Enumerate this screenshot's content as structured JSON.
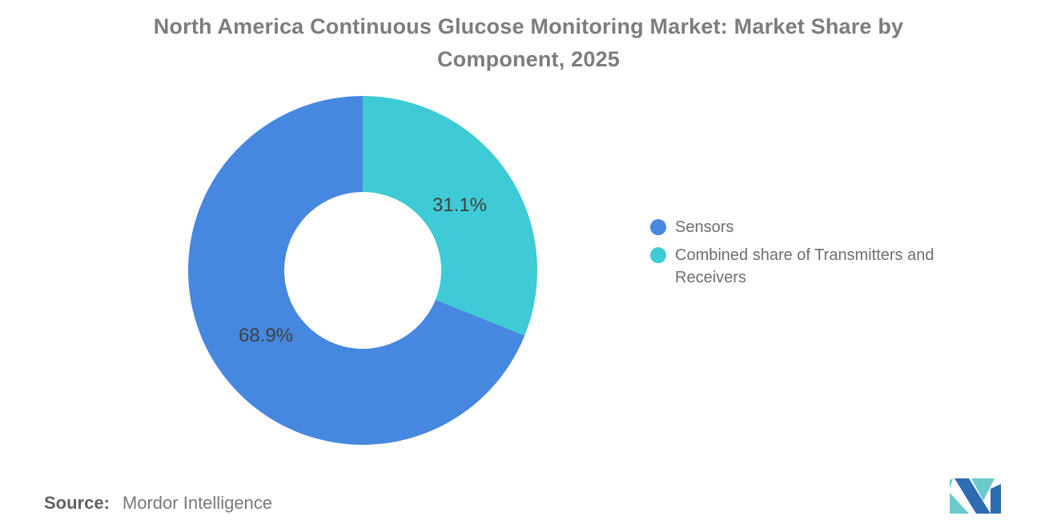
{
  "header": {
    "title": "North America Continuous Glucose Monitoring Market: Market Share by Component, 2025",
    "title_color": "#7d7d7d"
  },
  "chart_data": {
    "type": "pie",
    "subtype": "donut",
    "title": "North America Continuous Glucose Monitoring Market: Market Share by Component, 2025",
    "unit": "percent",
    "start_angle": "12 o'clock",
    "direction": "counterclockwise",
    "legend_position": "right",
    "grid": false,
    "series": [
      {
        "name": "Sensors",
        "value": 68.9,
        "label": "68.9%",
        "color": "#4687e0"
      },
      {
        "name": "Combined share of Transmitters and Receivers",
        "value": 31.1,
        "label": "31.1%",
        "color": "#3ecbd5"
      }
    ],
    "slice_label_color": "#3e4043"
  },
  "legend": {
    "items": [
      {
        "label": "Sensors"
      },
      {
        "label": "Combined share of Transmitters and Receivers"
      }
    ]
  },
  "footer": {
    "source_label": "Source:",
    "source_value": "Mordor Intelligence"
  },
  "branding": {
    "logo_alt": "Mordor Intelligence logo",
    "navy": "#2d6cb2",
    "teal": "#6cc9ce"
  }
}
